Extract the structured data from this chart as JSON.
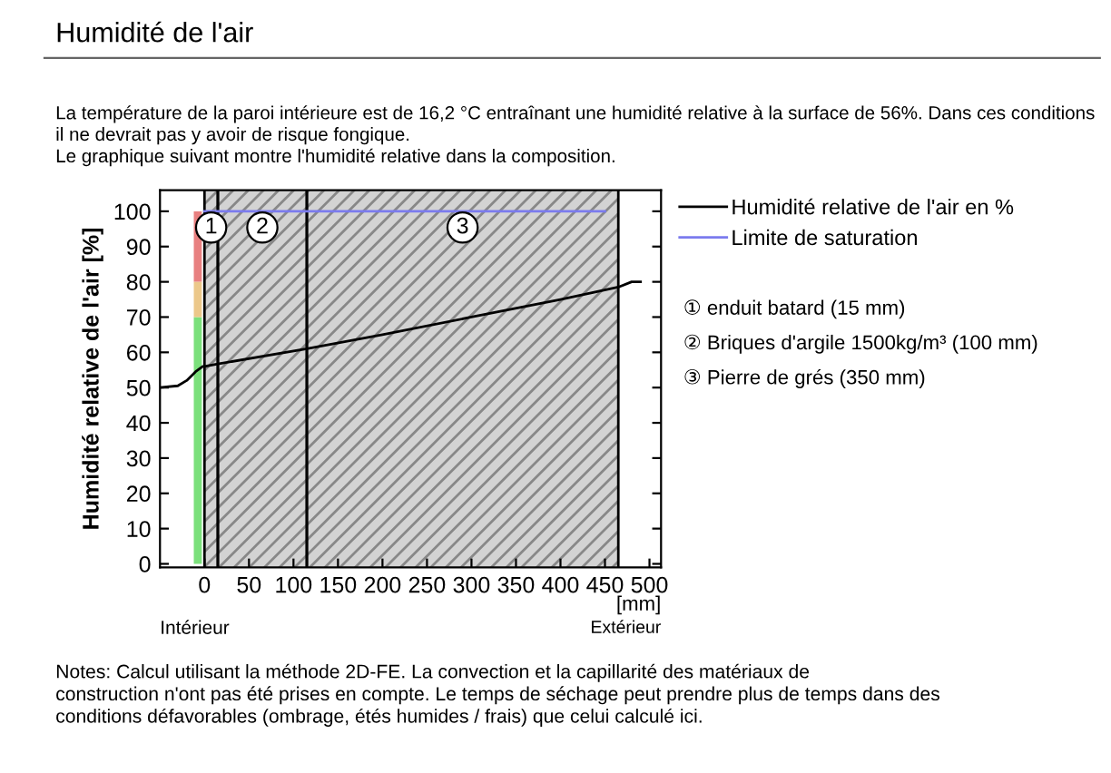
{
  "chart_data": {
    "type": "line",
    "title": "Humidité de l'air",
    "subtitle": "La température de la paroi intérieure est de 16,2 °C entraînant une humidité relative à la surface de 56%. Dans ces conditions\nil ne devrait pas y avoir de risque fongique.\nLe graphique suivant montre l'humidité relative dans la composition.",
    "ylabel": "Humidité relative de l'air [%]",
    "xlabel": "[mm]",
    "series": [
      {
        "name": "Humidité relative de l'air en %",
        "color": "#000000",
        "x": [
          -50,
          -30,
          -20,
          -10,
          -2,
          0,
          15,
          115,
          200,
          300,
          400,
          465,
          480,
          490
        ],
        "values": [
          50,
          50.5,
          52,
          54.5,
          56,
          56,
          56.7,
          61,
          65,
          70,
          75,
          78.5,
          80,
          80
        ]
      },
      {
        "name": "Limite de saturation",
        "color": "#7b7bee",
        "x": [
          0,
          450
        ],
        "values": [
          100,
          100
        ]
      },
      {
        "type": "bar",
        "color": "#7be07b",
        "x": [
          -7.5
        ],
        "values": [
          70
        ]
      },
      {
        "type": "bar",
        "color": "#ecc88a",
        "x": [
          -7.5
        ],
        "values": [
          10
        ]
      },
      {
        "type": "bar",
        "color": "#e88080",
        "x": [
          -7.5
        ],
        "values": [
          20
        ]
      }
    ],
    "stacked": true,
    "bands": [
      {
        "axis": "x",
        "from": 0,
        "to": 15,
        "label": "1",
        "color": "#d3d3d3"
      },
      {
        "axis": "x",
        "from": 15,
        "to": 115,
        "label": "2",
        "color": "#d3d3d3"
      },
      {
        "axis": "x",
        "from": 115,
        "to": 465,
        "label": "3",
        "color": "#d3d3d3"
      }
    ],
    "xlim": [
      -50,
      513
    ],
    "ylim": [
      -1,
      106
    ],
    "xticks": [
      0,
      50,
      100,
      150,
      200,
      250,
      300,
      350,
      400,
      450,
      500
    ],
    "yticks": [
      0,
      10,
      20,
      30,
      40,
      50,
      60,
      70,
      80,
      90,
      100
    ],
    "grid": false,
    "legend": "right",
    "annotations": [
      "Intérieur",
      "Extérieur",
      "① enduit batard (15 mm)",
      "② Briques d'argile 1500kg/m³ (100 mm)",
      "③ Pierre de grés (350 mm)",
      "Notes: Calcul utilisant la méthode 2D-FE. La convection et la capillarité des matériaux de\nconstruction n'ont pas été prises en compte. Le temps de séchage peut prendre plus de temps dans des\nconditions défavorables (ombrage, étés humides / frais) que celui calculé ici."
    ]
  }
}
